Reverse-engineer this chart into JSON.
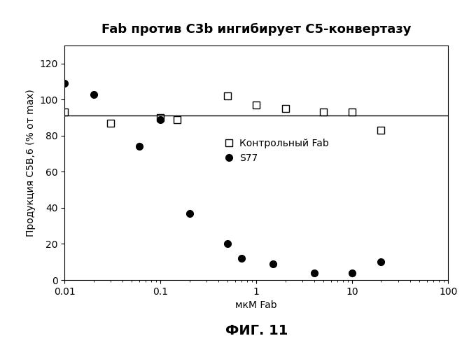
{
  "title": "Fab против С3b ингибирует С5-конвертазу",
  "xlabel": "мкМ Fab",
  "ylabel": "Продукция С5В,6 (% от max)",
  "fig_caption": "ФИГ. 11",
  "xlim": [
    0.01,
    100
  ],
  "ylim": [
    0,
    130
  ],
  "yticks": [
    0,
    20,
    40,
    60,
    80,
    100,
    120
  ],
  "xticks": [
    0.01,
    0.1,
    1,
    10,
    100
  ],
  "xtick_labels": [
    "0.01",
    "0.1",
    "1",
    "10",
    "100"
  ],
  "control_x": [
    0.01,
    0.03,
    0.1,
    0.15,
    0.5,
    1.0,
    2.0,
    5.0,
    10.0,
    20.0
  ],
  "control_y": [
    93,
    87,
    90,
    89,
    102,
    97,
    95,
    93,
    93,
    83
  ],
  "control_line_y": 91,
  "s77_x": [
    0.01,
    0.02,
    0.06,
    0.1,
    0.2,
    0.5,
    0.7,
    1.5,
    4.0,
    10.0,
    20.0
  ],
  "s77_y": [
    109,
    103,
    74,
    89,
    37,
    20,
    12,
    9,
    4,
    4,
    10
  ],
  "legend_control": "Контрольный Fab",
  "legend_s77": "S77",
  "background_color": "#ffffff",
  "plot_bg": "#ffffff",
  "title_fontsize": 13,
  "label_fontsize": 10,
  "tick_fontsize": 10,
  "caption_fontsize": 14,
  "legend_fontsize": 10
}
